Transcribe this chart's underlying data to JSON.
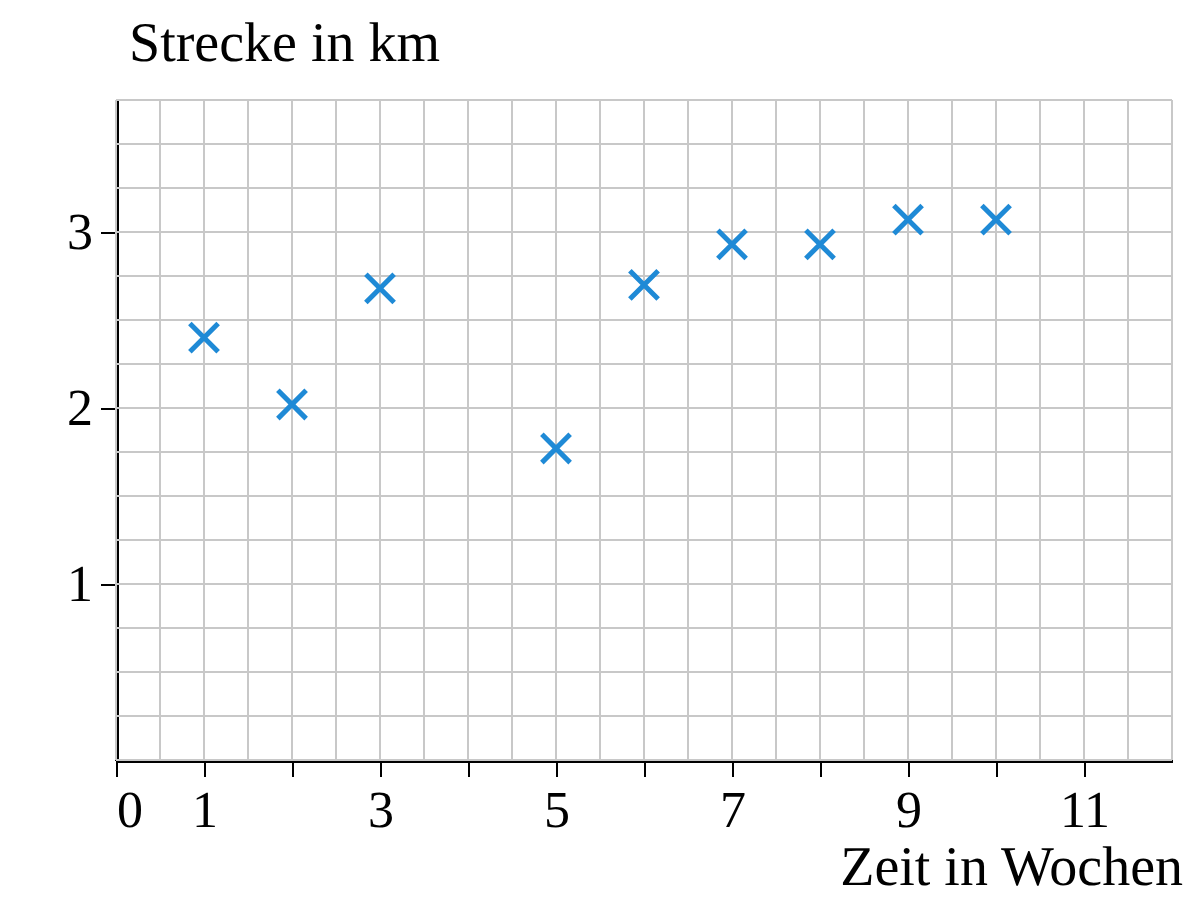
{
  "chart_data": {
    "type": "scatter",
    "xlabel": "Zeit in Wochen",
    "ylabel": "Strecke in km",
    "x": [
      1,
      2,
      3,
      5,
      6,
      7,
      8,
      9,
      10
    ],
    "series": [
      {
        "color": "#1f8ad6",
        "values": [
          2.4,
          2.02,
          2.68,
          1.77,
          2.7,
          2.93,
          2.93,
          3.07,
          3.07
        ]
      }
    ],
    "xlim": [
      0,
      12
    ],
    "ylim": [
      0,
      3.75
    ],
    "xticks": [
      0,
      1,
      {
        "value": 2,
        "label": null
      },
      3,
      {
        "value": 4,
        "label": null
      },
      5,
      {
        "value": 6,
        "label": null
      },
      7,
      {
        "value": 8,
        "label": null
      },
      9,
      {
        "value": 10,
        "label": null
      },
      11
    ],
    "yticks": [
      1,
      2,
      3
    ],
    "grid": true,
    "marker": "cross"
  }
}
